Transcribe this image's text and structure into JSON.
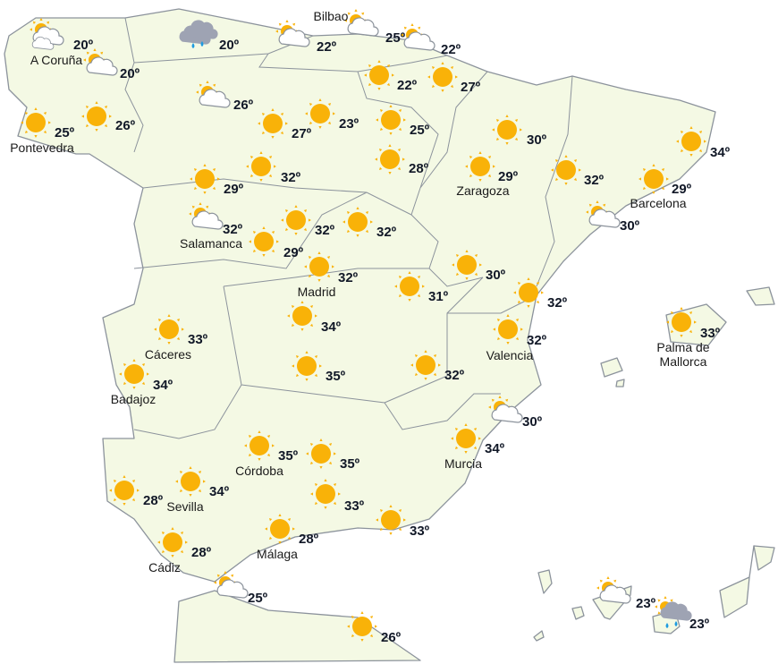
{
  "colors": {
    "land": "#f4f9e4",
    "border": "#8c939c",
    "sun": "#f9b208",
    "cloud_light": "#ffffff",
    "cloud_dark": "#9ea3b3",
    "rain": "#1e9be0",
    "text": "#111827"
  },
  "forecasts": [
    {
      "icon": "sun-cloud-icon",
      "temp": "20º",
      "city": "A Coruña"
    },
    {
      "icon": "sun-cloud-icon",
      "temp": "20º",
      "city": ""
    },
    {
      "icon": "rain-cloud-icon",
      "temp": "20º",
      "city": ""
    },
    {
      "icon": "sun-cloud-icon",
      "temp": "22º",
      "city": ""
    },
    {
      "icon": "sun-cloud-icon",
      "temp": "25º",
      "city": "Bilbao"
    },
    {
      "icon": "sun-cloud-icon",
      "temp": "22º",
      "city": ""
    },
    {
      "icon": "sun-icon",
      "temp": "22º",
      "city": ""
    },
    {
      "icon": "sun-icon",
      "temp": "27º",
      "city": ""
    },
    {
      "icon": "sun-cloud-icon",
      "temp": "26º",
      "city": ""
    },
    {
      "icon": "sun-icon",
      "temp": "25º",
      "city": "Pontevedra"
    },
    {
      "icon": "sun-icon",
      "temp": "26º",
      "city": ""
    },
    {
      "icon": "sun-icon",
      "temp": "27º",
      "city": ""
    },
    {
      "icon": "sun-icon",
      "temp": "23º",
      "city": ""
    },
    {
      "icon": "sun-icon",
      "temp": "25º",
      "city": ""
    },
    {
      "icon": "sun-icon",
      "temp": "30º",
      "city": ""
    },
    {
      "icon": "sun-icon",
      "temp": "34º",
      "city": ""
    },
    {
      "icon": "sun-icon",
      "temp": "28º",
      "city": ""
    },
    {
      "icon": "sun-icon",
      "temp": "32º",
      "city": ""
    },
    {
      "icon": "sun-icon",
      "temp": "29º",
      "city": ""
    },
    {
      "icon": "sun-icon",
      "temp": "29º",
      "city": "Zaragoza"
    },
    {
      "icon": "sun-icon",
      "temp": "32º",
      "city": ""
    },
    {
      "icon": "sun-icon",
      "temp": "29º",
      "city": "Barcelona"
    },
    {
      "icon": "sun-cloud-icon",
      "temp": "30º",
      "city": ""
    },
    {
      "icon": "sun-cloud-icon",
      "temp": "32º",
      "city": "Salamanca"
    },
    {
      "icon": "sun-icon",
      "temp": "32º",
      "city": ""
    },
    {
      "icon": "sun-icon",
      "temp": "32º",
      "city": ""
    },
    {
      "icon": "sun-icon",
      "temp": "29º",
      "city": ""
    },
    {
      "icon": "sun-icon",
      "temp": "32º",
      "city": "Madrid"
    },
    {
      "icon": "sun-icon",
      "temp": "30º",
      "city": ""
    },
    {
      "icon": "sun-icon",
      "temp": "31º",
      "city": ""
    },
    {
      "icon": "sun-icon",
      "temp": "32º",
      "city": ""
    },
    {
      "icon": "sun-icon",
      "temp": "34º",
      "city": ""
    },
    {
      "icon": "sun-icon",
      "temp": "33º",
      "city": "Cáceres"
    },
    {
      "icon": "sun-icon",
      "temp": "32º",
      "city": "Valencia"
    },
    {
      "icon": "sun-icon",
      "temp": "33º",
      "city": "Palma de Mallorca"
    },
    {
      "icon": "sun-icon",
      "temp": "34º",
      "city": "Badajoz"
    },
    {
      "icon": "sun-icon",
      "temp": "35º",
      "city": ""
    },
    {
      "icon": "sun-icon",
      "temp": "32º",
      "city": ""
    },
    {
      "icon": "sun-cloud-icon",
      "temp": "30º",
      "city": ""
    },
    {
      "icon": "sun-icon",
      "temp": "34º",
      "city": "Murcia"
    },
    {
      "icon": "sun-icon",
      "temp": "35º",
      "city": "Córdoba"
    },
    {
      "icon": "sun-icon",
      "temp": "35º",
      "city": ""
    },
    {
      "icon": "sun-icon",
      "temp": "34º",
      "city": "Sevilla"
    },
    {
      "icon": "sun-icon",
      "temp": "28º",
      "city": ""
    },
    {
      "icon": "sun-icon",
      "temp": "33º",
      "city": ""
    },
    {
      "icon": "sun-icon",
      "temp": "33º",
      "city": ""
    },
    {
      "icon": "sun-icon",
      "temp": "28º",
      "city": "Málaga"
    },
    {
      "icon": "sun-icon",
      "temp": "28º",
      "city": "Cádiz"
    },
    {
      "icon": "sun-cloud-icon",
      "temp": "25º",
      "city": ""
    },
    {
      "icon": "sun-icon",
      "temp": "26º",
      "city": ""
    },
    {
      "icon": "sun-cloud-icon",
      "temp": "23º",
      "city": ""
    },
    {
      "icon": "sun-rain-cloud-icon",
      "temp": "23º",
      "city": ""
    }
  ]
}
